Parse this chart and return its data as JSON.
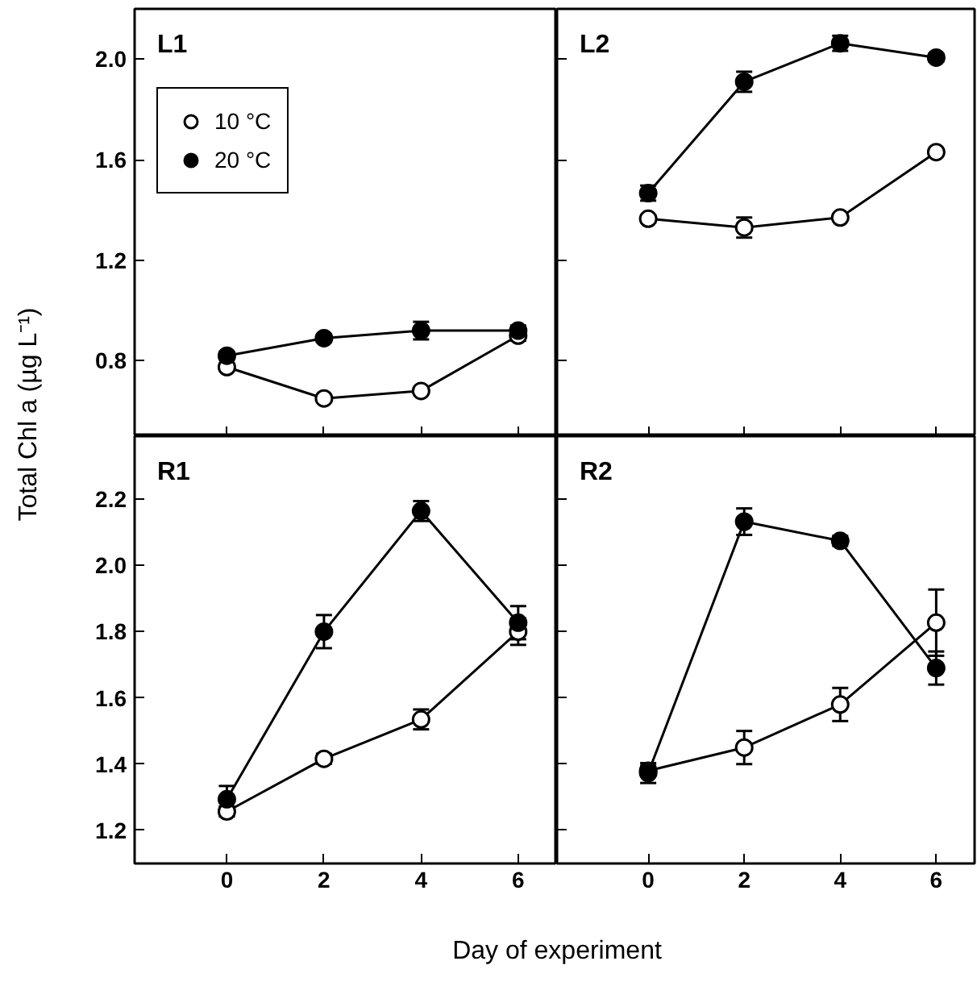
{
  "chart_data": [
    {
      "type": "line",
      "title": "L1",
      "ylabel": "Total Chl a (µg L⁻¹)",
      "x": [
        0,
        2,
        4,
        6
      ],
      "xlim": [
        -1.9,
        6.8
      ],
      "xticks": [
        0,
        2,
        4,
        6
      ],
      "ylim": [
        0.5,
        2.2
      ],
      "yticks": [
        0.8,
        1.2,
        1.6,
        {
          "value": 2.0,
          "label": "2.0"
        }
      ],
      "tick_labels": "y",
      "legend": "top left",
      "series": [
        {
          "name": "10 °C",
          "color": "#000000",
          "marker": "circle_open",
          "values": [
            0.775,
            0.65,
            0.68,
            0.9
          ],
          "errors": [
            0.015,
            0.01,
            0.01,
            0.02
          ]
        },
        {
          "name": "20 °C",
          "color": "#000000",
          "marker": "circle",
          "values": [
            0.82,
            0.89,
            0.92,
            0.92
          ],
          "errors": [
            0.015,
            0.015,
            0.035,
            0.02
          ]
        }
      ]
    },
    {
      "type": "line",
      "title": "L2",
      "x": [
        0,
        2,
        4,
        6
      ],
      "xlim": [
        -1.9,
        6.8
      ],
      "xticks": [
        0,
        2,
        4,
        6
      ],
      "ylim": [
        0.5,
        2.2
      ],
      "yticks": [
        0.8,
        1.2,
        1.6,
        2.0
      ],
      "tick_labels": false,
      "series": [
        {
          "color": "#000000",
          "marker": "circle_open",
          "values": [
            1.365,
            1.33,
            1.37,
            1.63
          ],
          "errors": [
            0.015,
            0.04,
            0.01,
            null
          ]
        },
        {
          "color": "#000000",
          "marker": "circle",
          "values": [
            1.467,
            1.91,
            2.063,
            2.006
          ],
          "errors": [
            0.03,
            0.04,
            0.03,
            0.015
          ]
        }
      ]
    },
    {
      "type": "line",
      "title": "R1",
      "xlabel": "Day of experiment",
      "x": [
        0,
        2,
        4,
        6
      ],
      "xlim": [
        -1.9,
        6.8
      ],
      "xticks": [
        0,
        2,
        4,
        6
      ],
      "ylim": [
        1.1,
        2.39
      ],
      "yticks": [
        1.2,
        1.4,
        1.6,
        1.8,
        {
          "value": 2.0,
          "label": "2.0"
        },
        2.2
      ],
      "series": [
        {
          "color": "#000000",
          "marker": "circle_open",
          "values": [
            1.257,
            1.416,
            1.535,
            1.8
          ],
          "errors": [
            0.015,
            0.015,
            0.03,
            0.04
          ]
        },
        {
          "color": "#000000",
          "marker": "circle",
          "values": [
            1.294,
            1.8,
            2.164,
            1.827
          ],
          "errors": [
            0.04,
            0.05,
            0.03,
            0.05
          ]
        }
      ]
    },
    {
      "type": "line",
      "title": "R2",
      "x": [
        0,
        2,
        4,
        6
      ],
      "xlim": [
        -1.9,
        6.8
      ],
      "xticks": [
        0,
        2,
        4,
        6
      ],
      "ylim": [
        1.1,
        2.39
      ],
      "yticks": [
        1.2,
        1.4,
        1.6,
        1.8,
        2.0,
        2.2
      ],
      "tick_labels": "x",
      "series": [
        {
          "color": "#000000",
          "marker": "circle_open",
          "values": [
            1.38,
            1.45,
            1.58,
            1.827
          ],
          "errors": [
            0.015,
            0.05,
            0.05,
            0.1
          ]
        },
        {
          "color": "#000000",
          "marker": "circle",
          "values": [
            1.373,
            2.132,
            2.074,
            1.69
          ],
          "errors": [
            0.03,
            0.04,
            0.015,
            0.05
          ]
        }
      ]
    }
  ]
}
